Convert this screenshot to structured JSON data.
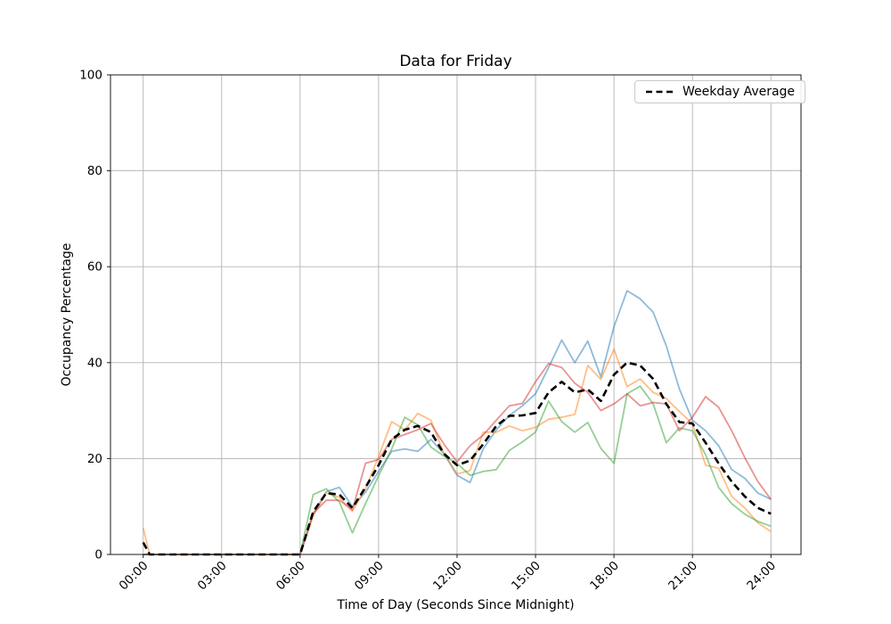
{
  "figure": {
    "title": "Data for Friday",
    "xlabel": "Time of Day (Seconds Since Midnight)",
    "ylabel": "Occupancy Percentage",
    "legend_label": "Weekday Average"
  },
  "chart_data": {
    "type": "line",
    "title": "Data for Friday",
    "xlabel": "Time of Day (Seconds Since Midnight)",
    "ylabel": "Occupancy Percentage",
    "x_unit": "hours_since_midnight",
    "xlim": [
      -1.25,
      25.15
    ],
    "ylim": [
      0,
      100
    ],
    "grid": true,
    "grid_color": "#b3b3b3",
    "legend": {
      "position": "upper right",
      "entries": [
        "Weekday Average"
      ]
    },
    "x_tick_hours": [
      0,
      3,
      6,
      9,
      12,
      15,
      18,
      21,
      24
    ],
    "x_tick_labels": [
      "00:00",
      "03:00",
      "06:00",
      "09:00",
      "12:00",
      "15:00",
      "18:00",
      "21:00",
      "24:00"
    ],
    "y_ticks": [
      0,
      20,
      40,
      60,
      80,
      100
    ],
    "y_tick_labels": [
      "0",
      "20",
      "40",
      "60",
      "80",
      "100"
    ],
    "x_hours": [
      0,
      0.25,
      0.5,
      1,
      1.5,
      2,
      2.5,
      3,
      3.5,
      4,
      4.5,
      5,
      5.5,
      6,
      6.5,
      7,
      7.5,
      8,
      8.5,
      9,
      9.5,
      10,
      10.5,
      11,
      11.5,
      12,
      12.5,
      13,
      13.5,
      14,
      14.5,
      15,
      15.5,
      16,
      16.5,
      17,
      17.5,
      18,
      18.5,
      19,
      19.5,
      20,
      20.5,
      21,
      21.5,
      22,
      22.5,
      23,
      23.5,
      24
    ],
    "series": [
      {
        "name": "friday_series_blue",
        "color": "#1f77b4",
        "opacity": 0.5,
        "width": 1.8,
        "dashed": false,
        "values": [
          0,
          0,
          0,
          0,
          0,
          0,
          0,
          0,
          0,
          0,
          0,
          0,
          0,
          0,
          8.4,
          13.1,
          14,
          10,
          13,
          17.3,
          21.5,
          22,
          21.5,
          24,
          21,
          16.5,
          15,
          22,
          26,
          29,
          31,
          33.5,
          39,
          44.7,
          40,
          44.5,
          37,
          47.5,
          55,
          53.3,
          50.5,
          43.5,
          34.5,
          28,
          25.8,
          22.7,
          17.7,
          15.9,
          12.8,
          11.5
        ]
      },
      {
        "name": "friday_series_orange",
        "color": "#ff7f0e",
        "opacity": 0.5,
        "width": 1.8,
        "dashed": false,
        "values": [
          5.5,
          0,
          0,
          0,
          0,
          0,
          0,
          0,
          0,
          0,
          0,
          0,
          0,
          0,
          8,
          12.8,
          11.9,
          9,
          13.7,
          20.4,
          27.7,
          26,
          29.4,
          28,
          21,
          16.8,
          17.5,
          25.5,
          25.5,
          26.8,
          25.8,
          26.5,
          28.2,
          28.6,
          29.2,
          39.4,
          36.5,
          42.8,
          35,
          36.6,
          33.8,
          32.5,
          29.8,
          27.3,
          18.6,
          18,
          12.1,
          9.7,
          6.6,
          4.8
        ]
      },
      {
        "name": "friday_series_green",
        "color": "#2ca02c",
        "opacity": 0.5,
        "width": 1.8,
        "dashed": false,
        "values": [
          0,
          0,
          0,
          0,
          0,
          0,
          0,
          0,
          0,
          0,
          0,
          0,
          0,
          0,
          12.5,
          13.7,
          10.9,
          4.5,
          10.6,
          16.4,
          22,
          28.6,
          27,
          22.4,
          20.5,
          19,
          16.5,
          17.3,
          17.7,
          21.7,
          23.5,
          25.5,
          32,
          27.7,
          25.5,
          27.5,
          22.1,
          19,
          33.5,
          35.1,
          31.4,
          23.3,
          26.4,
          25.8,
          20.8,
          14,
          10.6,
          8.4,
          6.9,
          5.9
        ]
      },
      {
        "name": "friday_series_red",
        "color": "#d62728",
        "opacity": 0.5,
        "width": 1.8,
        "dashed": false,
        "values": [
          0,
          0,
          0,
          0,
          0,
          0,
          0,
          0,
          0,
          0,
          0,
          0,
          0,
          0,
          8.6,
          11.3,
          11.3,
          9.3,
          19,
          19.8,
          24,
          25,
          26,
          27.3,
          23,
          19.3,
          22.7,
          24.9,
          28,
          31,
          31.5,
          36,
          39.8,
          39,
          35.7,
          33.8,
          30,
          31.4,
          33.5,
          31,
          31.7,
          31.4,
          25.8,
          28.6,
          32.9,
          30.7,
          25.8,
          20.2,
          15.2,
          11.5
        ]
      },
      {
        "name": "weekday_average",
        "legend_label": "Weekday Average",
        "color": "#000000",
        "opacity": 1,
        "width": 2.6,
        "dashed": true,
        "values": [
          2.5,
          0,
          0,
          0,
          0,
          0,
          0,
          0,
          0,
          0,
          0,
          0,
          0,
          0,
          8.9,
          12.8,
          12.5,
          9.7,
          14,
          18.6,
          24,
          26,
          26.8,
          25.5,
          21,
          18.6,
          19.6,
          23,
          26.8,
          28.9,
          29,
          29.5,
          33.8,
          36,
          33.8,
          34.4,
          32,
          37.5,
          40,
          39.4,
          36.6,
          31.4,
          27.6,
          27.3,
          23.3,
          19,
          15.2,
          12.1,
          9.7,
          8.5
        ]
      }
    ]
  }
}
